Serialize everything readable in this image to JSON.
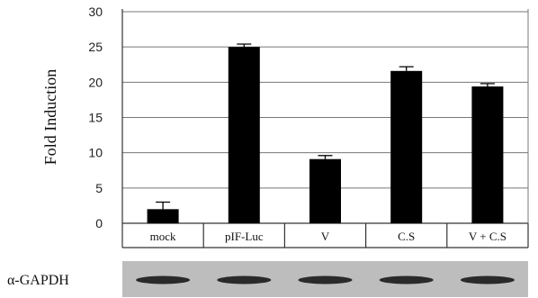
{
  "chart_data": {
    "type": "bar",
    "title": "",
    "xlabel": "",
    "ylabel": "Fold Induction",
    "ylim": [
      0,
      30
    ],
    "yticks": [
      0,
      5,
      10,
      15,
      20,
      25,
      30
    ],
    "grid": true,
    "legend": "none",
    "categories": [
      "mock",
      "pIF-Luc",
      "V",
      "C.S",
      "V + C.S"
    ],
    "values": [
      2.0,
      25.0,
      9.1,
      21.6,
      19.4
    ],
    "errors": [
      1.0,
      0.4,
      0.5,
      0.6,
      0.4
    ],
    "bar_color": "#000000"
  },
  "blot": {
    "label": "α-GAPDH",
    "band_color": "#2a2a2a",
    "background_color": "#bdbdbd"
  }
}
